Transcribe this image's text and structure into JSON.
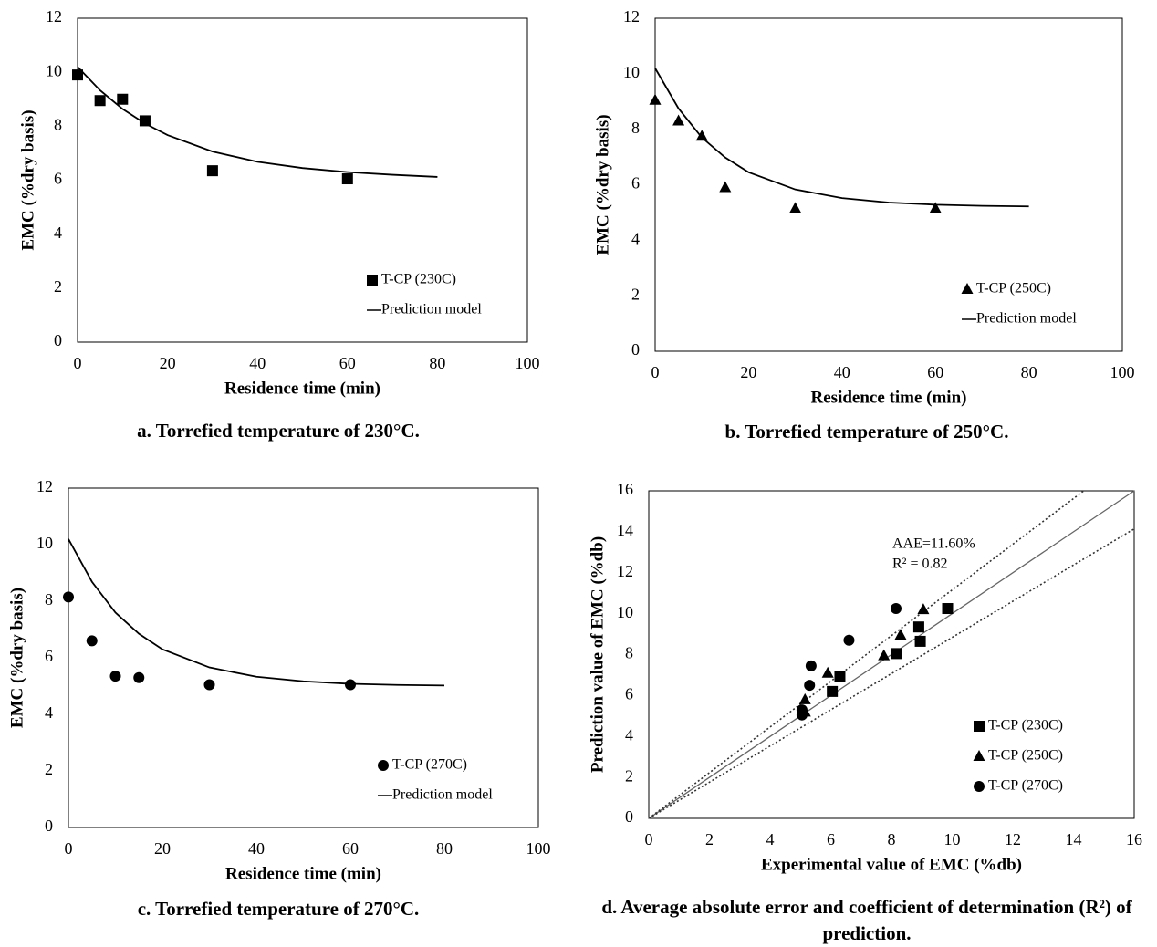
{
  "chart_data": [
    {
      "type": "scatter",
      "caption": "a. Torrefied temperature of 230°C.",
      "x_label": "Residence time (min)",
      "y_label": "EMC (%dry basis)",
      "xlim": [
        0,
        100
      ],
      "xticks": [
        0,
        20,
        40,
        60,
        80,
        100
      ],
      "ylim": [
        0,
        12
      ],
      "yticks": [
        0,
        2,
        4,
        6,
        8,
        10,
        12
      ],
      "legend": "lower right",
      "grid": false,
      "series": [
        {
          "name": "T-CP (230C)",
          "mark": "square",
          "color": "#000000",
          "x": [
            0,
            5,
            10,
            15,
            30,
            60
          ],
          "values": [
            9.9,
            8.95,
            9.0,
            8.2,
            6.35,
            6.05
          ]
        },
        {
          "name": "Prediction model",
          "mark": "line",
          "color": "#000000",
          "x": [
            0,
            5,
            10,
            15,
            20,
            30,
            40,
            50,
            60,
            70,
            80
          ],
          "values": [
            10.2,
            9.33,
            8.64,
            8.1,
            7.67,
            7.06,
            6.68,
            6.45,
            6.3,
            6.2,
            6.12
          ]
        }
      ]
    },
    {
      "type": "scatter",
      "caption": "b. Torrefied temperature of 250°C.",
      "x_label": "Residence time (min)",
      "y_label": "EMC (%dry basis)",
      "xlim": [
        0,
        100
      ],
      "xticks": [
        0,
        20,
        40,
        60,
        80,
        100
      ],
      "ylim": [
        0,
        12
      ],
      "yticks": [
        0,
        2,
        4,
        6,
        8,
        10,
        12
      ],
      "legend": "lower right",
      "grid": false,
      "series": [
        {
          "name": "T-CP (250C)",
          "mark": "triangle",
          "color": "#000000",
          "x": [
            0,
            5,
            10,
            15,
            30,
            60
          ],
          "values": [
            9.05,
            8.3,
            7.75,
            5.9,
            5.15,
            5.15
          ]
        },
        {
          "name": "Prediction model",
          "mark": "line",
          "color": "#000000",
          "x": [
            0,
            5,
            10,
            15,
            20,
            30,
            40,
            50,
            60,
            70,
            80
          ],
          "values": [
            10.2,
            8.75,
            7.7,
            6.98,
            6.45,
            5.83,
            5.52,
            5.36,
            5.28,
            5.24,
            5.22
          ]
        }
      ]
    },
    {
      "type": "scatter",
      "caption": "c. Torrefied temperature of 270°C.",
      "x_label": "Residence time (min)",
      "y_label": "EMC (%dry basis)",
      "xlim": [
        0,
        100
      ],
      "xticks": [
        0,
        20,
        40,
        60,
        80,
        100
      ],
      "ylim": [
        0,
        12
      ],
      "yticks": [
        0,
        2,
        4,
        6,
        8,
        10,
        12
      ],
      "legend": "lower right",
      "grid": false,
      "series": [
        {
          "name": "T-CP (270C)",
          "mark": "circle",
          "color": "#000000",
          "x": [
            0,
            5,
            10,
            15,
            30,
            60
          ],
          "values": [
            8.15,
            6.6,
            5.35,
            5.3,
            5.05,
            5.05
          ]
        },
        {
          "name": "Prediction model",
          "mark": "line",
          "color": "#000000",
          "x": [
            0,
            5,
            10,
            15,
            20,
            30,
            40,
            50,
            60,
            70,
            80
          ],
          "values": [
            10.2,
            8.69,
            7.6,
            6.85,
            6.3,
            5.66,
            5.33,
            5.17,
            5.08,
            5.04,
            5.02
          ]
        }
      ]
    },
    {
      "type": "scatter",
      "caption": "d. Average absolute error and coefficient of determination (R²) of prediction.",
      "x_label": "Experimental value of EMC (%db)",
      "y_label": "Prediction value of EMC (%db)",
      "xlim": [
        0,
        16
      ],
      "xticks": [
        0,
        2,
        4,
        6,
        8,
        10,
        12,
        14,
        16
      ],
      "ylim": [
        0,
        16
      ],
      "yticks": [
        0,
        2,
        4,
        6,
        8,
        10,
        12,
        14,
        16
      ],
      "legend": "lower right",
      "grid": false,
      "annotations": [
        "AAE=11.60%",
        "R² = 0.82"
      ],
      "reference_lines": [
        {
          "slope": 1,
          "style": "solid"
        },
        {
          "slope": 1.116,
          "style": "dotted"
        },
        {
          "slope": 0.884,
          "style": "dotted"
        }
      ],
      "series": [
        {
          "name": "T-CP (230C)",
          "mark": "square",
          "color": "#000000",
          "x": [
            9.85,
            8.9,
            8.95,
            8.15,
            6.3,
            6.05
          ],
          "values": [
            10.25,
            9.35,
            8.65,
            8.05,
            6.95,
            6.2
          ]
        },
        {
          "name": "T-CP (250C)",
          "mark": "triangle",
          "color": "#000000",
          "x": [
            9.05,
            8.3,
            7.75,
            5.9,
            5.15,
            5.15
          ],
          "values": [
            10.2,
            8.95,
            7.95,
            7.1,
            5.8,
            5.2
          ]
        },
        {
          "name": "T-CP (270C)",
          "mark": "circle",
          "color": "#000000",
          "x": [
            8.15,
            6.6,
            5.35,
            5.3,
            5.05,
            5.05
          ],
          "values": [
            10.25,
            8.7,
            7.45,
            6.5,
            5.3,
            5.05
          ]
        }
      ]
    }
  ]
}
